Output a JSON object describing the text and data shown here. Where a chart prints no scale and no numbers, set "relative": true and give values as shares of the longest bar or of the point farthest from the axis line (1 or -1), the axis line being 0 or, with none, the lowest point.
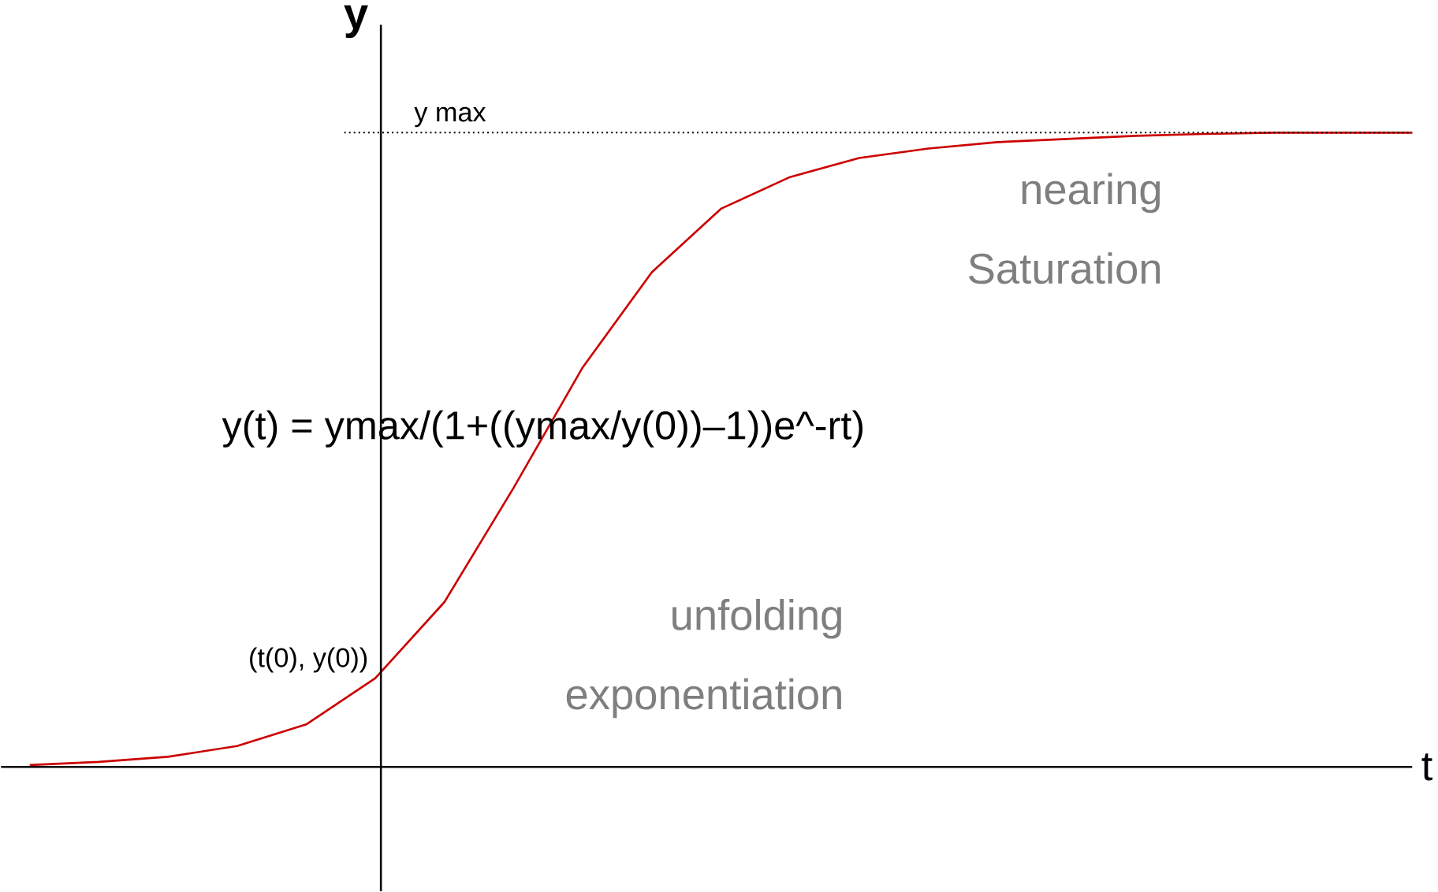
{
  "chart_data": {
    "type": "line",
    "relative": true,
    "xlabel": "t",
    "ylabel": "y",
    "categories": [
      null,
      null,
      null,
      null,
      null,
      null,
      null,
      null,
      null,
      null,
      null,
      null,
      null,
      null,
      null,
      null,
      null,
      null,
      null,
      null,
      null
    ],
    "series": [
      {
        "color": "#cc0000",
        "values": [
          0.003,
          0.008,
          0.016,
          0.033,
          0.067,
          0.14,
          0.26,
          0.44,
          0.63,
          0.78,
          0.88,
          0.93,
          0.96,
          0.975,
          0.985,
          0.99,
          0.995,
          0.998,
          1,
          1,
          1
        ]
      }
    ],
    "ref_lines": [
      {
        "axis": "y",
        "value": 1,
        "label": "y max",
        "line_style": "dotted",
        "color": "#000000"
      }
    ],
    "annotations": [
      "y(t) = ymax/(1+((ymax/y(0))–1))e^-rt)",
      "nearing Saturation",
      "unfolding exponentiation",
      "(t(0), y(0))"
    ]
  }
}
